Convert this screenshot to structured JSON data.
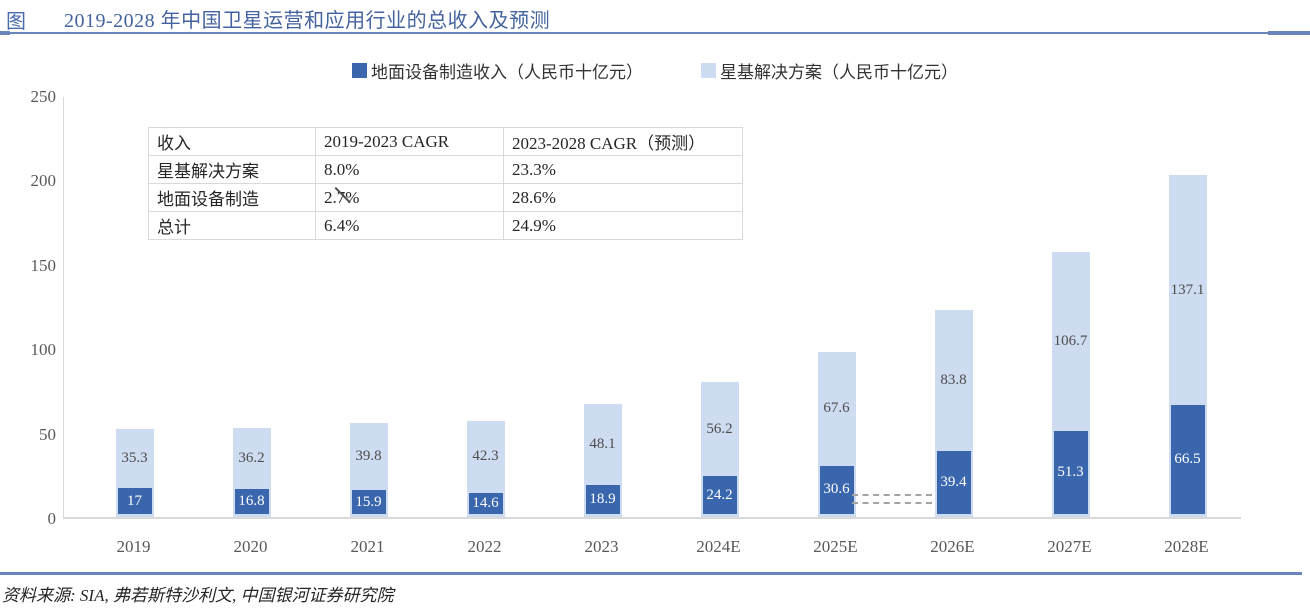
{
  "header": {
    "figure_label": "图",
    "title": "2019-2028 年中国卫星运营和应用行业的总收入及预测"
  },
  "legend": {
    "items": [
      {
        "label": "地面设备制造收入（人民币十亿元）",
        "color": "#3A66AE"
      },
      {
        "label": "星基解决方案（人民币十亿元）",
        "color": "#CEDCF1"
      }
    ]
  },
  "chart_data": {
    "type": "bar",
    "stacked": true,
    "title": "2019-2028 年中国卫星运营和应用行业的总收入及预测",
    "unit": "人民币十亿元",
    "categories": [
      "2019",
      "2020",
      "2021",
      "2022",
      "2023",
      "2024E",
      "2025E",
      "2026E",
      "2027E",
      "2028E"
    ],
    "series": [
      {
        "name": "地面设备制造收入",
        "color": "#3A66AE",
        "label_color": "#FFFFFF",
        "values": [
          17,
          16.8,
          15.9,
          14.6,
          18.9,
          24.2,
          30.6,
          39.4,
          51.3,
          66.5
        ],
        "labels": [
          "17",
          "16.8",
          "15.9",
          "14.6",
          "18.9",
          "24.2",
          "30.6",
          "39.4",
          "51.3",
          "66.5"
        ]
      },
      {
        "name": "星基解决方案",
        "color": "#CEDCF1",
        "label_color": "#4D4D4D",
        "values": [
          35.3,
          36.2,
          39.8,
          42.3,
          48.1,
          56.2,
          67.6,
          83.8,
          106.7,
          137.1
        ],
        "labels": [
          "35.3",
          "36.2",
          "39.8",
          "42.3",
          "48.1",
          "56.2",
          "67.6",
          "83.8",
          "106.7",
          "137.1"
        ]
      }
    ],
    "ylim": [
      0,
      250
    ],
    "yticks": [
      0,
      50,
      100,
      150,
      200,
      250
    ],
    "grid": false,
    "legend_position": "top",
    "xlabel": "",
    "ylabel": ""
  },
  "inset_table": {
    "headers": [
      "收入",
      "2019-2023 CAGR",
      "2023-2028 CAGR（预测）"
    ],
    "rows": [
      [
        "星基解决方案",
        "8.0%",
        "23.3%"
      ],
      [
        "地面设备制造",
        "2.7%",
        "28.6%"
      ],
      [
        "总计",
        "6.4%",
        "24.9%"
      ]
    ]
  },
  "footer": {
    "source": "资料来源: SIA, 弗若斯特沙利文, 中国银河证券研究院"
  }
}
